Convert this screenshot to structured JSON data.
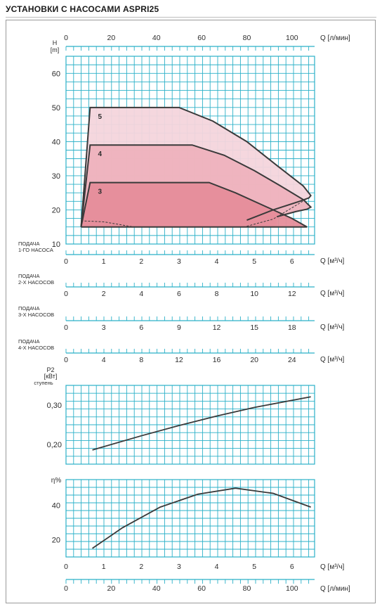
{
  "title": "УСТАНОВКИ С НАСОСАМИ ASPRI25",
  "colors": {
    "grid": "#2bb0c8",
    "curve": "#3a3a3a",
    "fill_3": "#e58d9a",
    "fill_4": "#eeb2bd",
    "fill_5": "#f4d5dc"
  },
  "chart_data": [
    {
      "type": "area",
      "name": "head",
      "ylabel": "H",
      "yunit": "[m]",
      "top_axis_unit": "Q [л/мин]",
      "top_axis_ticks": [
        "0",
        "20",
        "40",
        "60",
        "80",
        "100"
      ],
      "top_axis_range": [
        0,
        110
      ],
      "ylim": [
        10,
        65
      ],
      "yticks": [
        "10",
        "20",
        "30",
        "40",
        "50",
        "60"
      ],
      "x_unit_base": "m³/h",
      "xlim": [
        0,
        6.6
      ],
      "grid": true,
      "series": [
        {
          "name": "5",
          "points": [
            [
              0.64,
              50
            ],
            [
              3.0,
              50
            ],
            [
              3.9,
              46
            ],
            [
              4.8,
              40
            ],
            [
              5.6,
              33
            ],
            [
              6.3,
              27
            ],
            [
              6.5,
              24.2
            ],
            [
              6.45,
              23.5
            ],
            [
              6.2,
              22.5
            ],
            [
              5.5,
              20
            ],
            [
              4.8,
              17
            ]
          ]
        },
        {
          "name": "4",
          "points": [
            [
              0.64,
              39
            ],
            [
              3.35,
              39
            ],
            [
              4.2,
              36
            ],
            [
              5.0,
              31.5
            ],
            [
              5.7,
              27
            ],
            [
              6.3,
              23
            ],
            [
              6.5,
              20.8
            ],
            [
              6.4,
              20.2
            ],
            [
              6.1,
              19.5
            ],
            [
              5.6,
              18
            ]
          ]
        },
        {
          "name": "3",
          "points": [
            [
              0.64,
              28
            ],
            [
              3.8,
              28
            ],
            [
              4.5,
              25
            ],
            [
              5.3,
              21
            ],
            [
              6.0,
              17.5
            ],
            [
              6.4,
              15
            ]
          ]
        }
      ],
      "envelope_bottom": [
        [
          0.4,
          15
        ],
        [
          6.4,
          15
        ]
      ],
      "dashed_line": [
        [
          0.4,
          16.8
        ],
        [
          1.0,
          16.5
        ],
        [
          1.8,
          15
        ]
      ],
      "dashed_line_right": [
        [
          4.8,
          15.2
        ],
        [
          5.5,
          17.3
        ],
        [
          6.45,
          23.6
        ]
      ]
    },
    {
      "type": "axis",
      "name": "flow_1",
      "label_lines": [
        "ПОДАЧА",
        "1-ГО НАСОСА"
      ],
      "ticks": [
        "0",
        "1",
        "2",
        "3",
        "4",
        "5",
        "6"
      ],
      "range": [
        0,
        6.6
      ],
      "unit": "Q [м³/ч]"
    },
    {
      "type": "axis",
      "name": "flow_2",
      "label_lines": [
        "ПОДАЧА",
        "2-Х НАСОСОВ"
      ],
      "ticks": [
        "0",
        "2",
        "4",
        "6",
        "8",
        "10",
        "12"
      ],
      "range": [
        0,
        13.2
      ],
      "unit": "Q [м³/ч]"
    },
    {
      "type": "axis",
      "name": "flow_3",
      "label_lines": [
        "ПОДАЧА",
        "3-Х НАСОСОВ"
      ],
      "ticks": [
        "0",
        "3",
        "6",
        "9",
        "12",
        "15",
        "18"
      ],
      "range": [
        0,
        19.8
      ],
      "unit": "Q [м³/ч]"
    },
    {
      "type": "axis",
      "name": "flow_4",
      "label_lines": [
        "ПОДАЧА",
        "4-Х НАСОСОВ"
      ],
      "ticks": [
        "0",
        "4",
        "8",
        "12",
        "16",
        "20",
        "24"
      ],
      "range": [
        0,
        26.4
      ],
      "unit": "Q [м³/ч]"
    },
    {
      "type": "line",
      "name": "power",
      "ylabel_lines": [
        "P2",
        "[кВт]",
        "ступень"
      ],
      "ylim": [
        0.15,
        0.35
      ],
      "yticks": [
        "0,20",
        "0,30"
      ],
      "ytick_values": [
        0.2,
        0.3
      ],
      "xlim": [
        0,
        6.6
      ],
      "grid": true,
      "series": [
        {
          "points": [
            [
              0.7,
              0.186
            ],
            [
              2.0,
              0.222
            ],
            [
              3.0,
              0.248
            ],
            [
              4.0,
              0.272
            ],
            [
              5.0,
              0.294
            ],
            [
              6.5,
              0.321
            ]
          ]
        }
      ]
    },
    {
      "type": "line",
      "name": "efficiency",
      "ylabel": "η%",
      "ylim": [
        10,
        55
      ],
      "yticks": [
        "20",
        "40"
      ],
      "ytick_values": [
        20,
        40
      ],
      "xlim": [
        0,
        6.6
      ],
      "grid": true,
      "bottom_axis_m3h_ticks": [
        "0",
        "1",
        "2",
        "3",
        "4",
        "5",
        "6"
      ],
      "bottom_axis_m3h_unit": "Q [м³/ч]",
      "bottom_axis_lmin_ticks": [
        "0",
        "20",
        "40",
        "60",
        "80",
        "100"
      ],
      "bottom_axis_lmin_unit": "Q [л/мин]",
      "series": [
        {
          "points": [
            [
              0.7,
              15
            ],
            [
              1.5,
              27
            ],
            [
              2.5,
              39
            ],
            [
              3.5,
              46.5
            ],
            [
              4.5,
              50
            ],
            [
              5.5,
              47
            ],
            [
              6.5,
              39
            ]
          ]
        }
      ]
    }
  ]
}
